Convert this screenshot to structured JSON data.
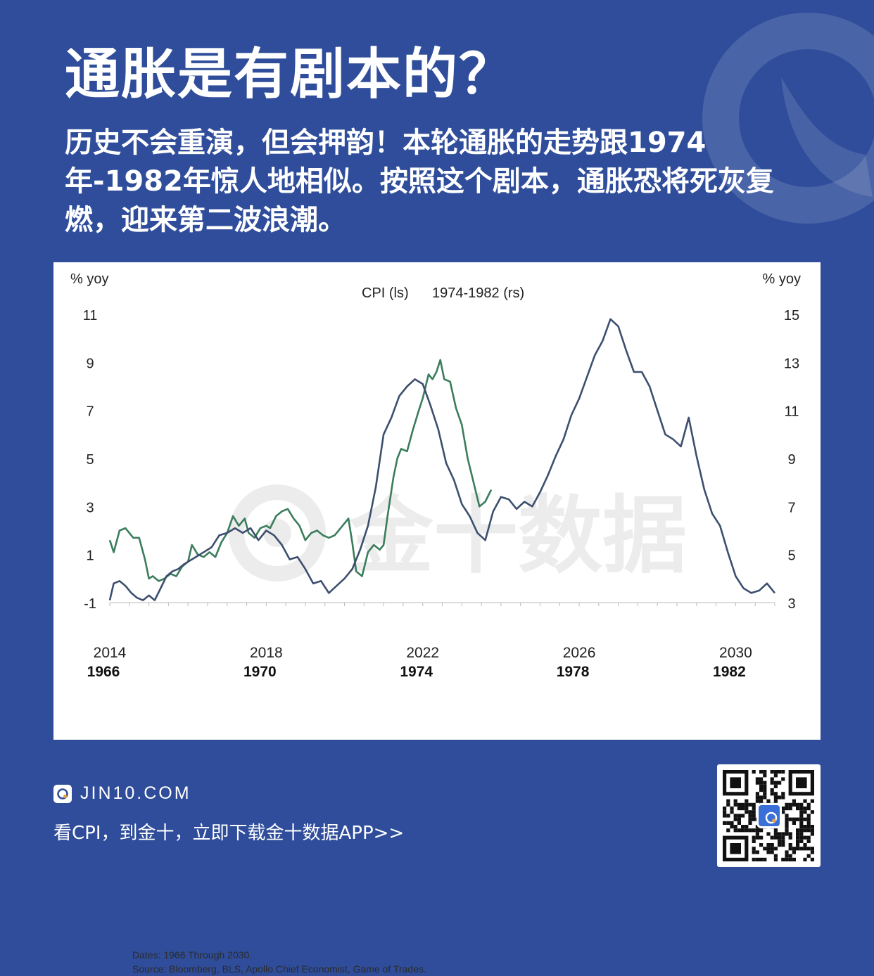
{
  "header": {
    "title": "通胀是有剧本的？",
    "subtitle": "历史不会重演，但会押韵！本轮通胀的走势跟1974年-1982年惊人地相似。按照这个剧本，通胀恐将死灰复燃，迎来第二波浪潮。"
  },
  "chart_data": {
    "type": "line",
    "left_axis_label": "% yoy",
    "right_axis_label": "% yoy",
    "legend": [
      "CPI (ls)",
      "1974-1982 (rs)"
    ],
    "x_ticks_top": [
      "2014",
      "2018",
      "2022",
      "2026",
      "2030"
    ],
    "x_ticks_bottom": [
      "1966",
      "1970",
      "1974",
      "1978",
      "1982"
    ],
    "y_left_ticks": [
      "11",
      "9",
      "7",
      "5",
      "3",
      "1",
      "-1"
    ],
    "y_right_ticks": [
      "15",
      "13",
      "11",
      "9",
      "7",
      "5",
      "3"
    ],
    "ylim_left": [
      -1,
      11
    ],
    "ylim_right": [
      3,
      15
    ],
    "xlim": [
      2014.0,
      2031.0
    ],
    "series": [
      {
        "name": "CPI (ls)",
        "color": "#3a7d5c",
        "axis": "left",
        "x": [
          2014.0,
          2014.1,
          2014.25,
          2014.4,
          2014.6,
          2014.75,
          2014.9,
          2015.0,
          2015.1,
          2015.25,
          2015.4,
          2015.55,
          2015.7,
          2015.85,
          2016.0,
          2016.1,
          2016.25,
          2016.4,
          2016.55,
          2016.7,
          2016.85,
          2017.0,
          2017.15,
          2017.3,
          2017.45,
          2017.55,
          2017.7,
          2017.85,
          2018.0,
          2018.1,
          2018.25,
          2018.4,
          2018.55,
          2018.7,
          2018.85,
          2019.0,
          2019.15,
          2019.3,
          2019.45,
          2019.6,
          2019.75,
          2019.9,
          2020.0,
          2020.1,
          2020.2,
          2020.3,
          2020.45,
          2020.6,
          2020.75,
          2020.9,
          2021.0,
          2021.1,
          2021.25,
          2021.35,
          2021.45,
          2021.6,
          2021.75,
          2021.9,
          2022.0,
          2022.15,
          2022.25,
          2022.35,
          2022.45,
          2022.55,
          2022.7,
          2022.85,
          2023.0,
          2023.15,
          2023.3,
          2023.45,
          2023.6,
          2023.75
        ],
        "y": [
          1.6,
          1.1,
          2.0,
          2.1,
          1.7,
          1.7,
          0.8,
          0.0,
          0.1,
          -0.1,
          0.0,
          0.2,
          0.1,
          0.5,
          0.7,
          1.4,
          1.0,
          0.9,
          1.1,
          0.9,
          1.5,
          1.9,
          2.6,
          2.2,
          2.5,
          1.9,
          1.7,
          2.1,
          2.2,
          2.1,
          2.6,
          2.8,
          2.9,
          2.5,
          2.2,
          1.6,
          1.9,
          2.0,
          1.8,
          1.7,
          1.8,
          2.1,
          2.3,
          2.5,
          1.5,
          0.3,
          0.1,
          1.1,
          1.4,
          1.2,
          1.4,
          2.6,
          4.2,
          5.0,
          5.4,
          5.3,
          6.2,
          7.0,
          7.5,
          8.5,
          8.3,
          8.6,
          9.1,
          8.3,
          8.2,
          7.1,
          6.4,
          5.0,
          4.0,
          3.0,
          3.2,
          3.7
        ]
      },
      {
        "name": "1974-1982 (rs)",
        "color": "#3d4f6e",
        "axis": "right",
        "x": [
          2014.0,
          2014.1,
          2014.25,
          2014.4,
          2014.55,
          2014.7,
          2014.85,
          2015.0,
          2015.15,
          2015.3,
          2015.45,
          2015.6,
          2015.75,
          2015.9,
          2016.0,
          2016.2,
          2016.4,
          2016.6,
          2016.8,
          2017.0,
          2017.2,
          2017.4,
          2017.6,
          2017.8,
          2018.0,
          2018.2,
          2018.4,
          2018.6,
          2018.8,
          2019.0,
          2019.2,
          2019.4,
          2019.6,
          2019.8,
          2020.0,
          2020.2,
          2020.4,
          2020.6,
          2020.8,
          2021.0,
          2021.2,
          2021.4,
          2021.6,
          2021.8,
          2022.0,
          2022.2,
          2022.4,
          2022.6,
          2022.8,
          2023.0,
          2023.2,
          2023.4,
          2023.6,
          2023.8,
          2024.0,
          2024.2,
          2024.4,
          2024.6,
          2024.8,
          2025.0,
          2025.2,
          2025.4,
          2025.6,
          2025.8,
          2026.0,
          2026.2,
          2026.4,
          2026.6,
          2026.8,
          2027.0,
          2027.2,
          2027.4,
          2027.6,
          2027.8,
          2028.0,
          2028.2,
          2028.4,
          2028.6,
          2028.8,
          2029.0,
          2029.2,
          2029.4,
          2029.6,
          2029.8,
          2030.0,
          2030.2,
          2030.4,
          2030.6,
          2030.8,
          2031.0
        ],
        "y": [
          3.1,
          3.8,
          3.9,
          3.7,
          3.4,
          3.2,
          3.1,
          3.3,
          3.1,
          3.6,
          4.1,
          4.3,
          4.4,
          4.6,
          4.7,
          4.9,
          5.1,
          5.3,
          5.8,
          5.9,
          6.1,
          5.9,
          6.1,
          5.6,
          6.0,
          5.8,
          5.4,
          4.8,
          4.9,
          4.4,
          3.8,
          3.9,
          3.4,
          3.7,
          4.0,
          4.4,
          5.2,
          6.2,
          7.8,
          10.0,
          10.7,
          11.6,
          12.0,
          12.3,
          12.1,
          11.2,
          10.2,
          8.8,
          8.1,
          7.1,
          6.6,
          5.9,
          5.6,
          6.8,
          7.4,
          7.3,
          6.9,
          7.2,
          7.0,
          7.6,
          8.3,
          9.1,
          9.8,
          10.8,
          11.5,
          12.4,
          13.3,
          13.9,
          14.8,
          14.5,
          13.5,
          12.6,
          12.6,
          12.0,
          11.0,
          10.0,
          9.8,
          9.5,
          10.7,
          9.1,
          7.7,
          6.7,
          6.2,
          5.1,
          4.1,
          3.6,
          3.4,
          3.5,
          3.8,
          3.4
        ]
      }
    ]
  },
  "footnote": {
    "dates": "Dates: 1966 Through 2030.",
    "source": "Source: Bloomberg, BLS, Apollo Chief Economist, Game of Trades."
  },
  "watermark": "金十数据",
  "footer": {
    "brand": "JIN10.COM",
    "cta": "看CPI，到金十，立即下载金十数据APP>>"
  }
}
